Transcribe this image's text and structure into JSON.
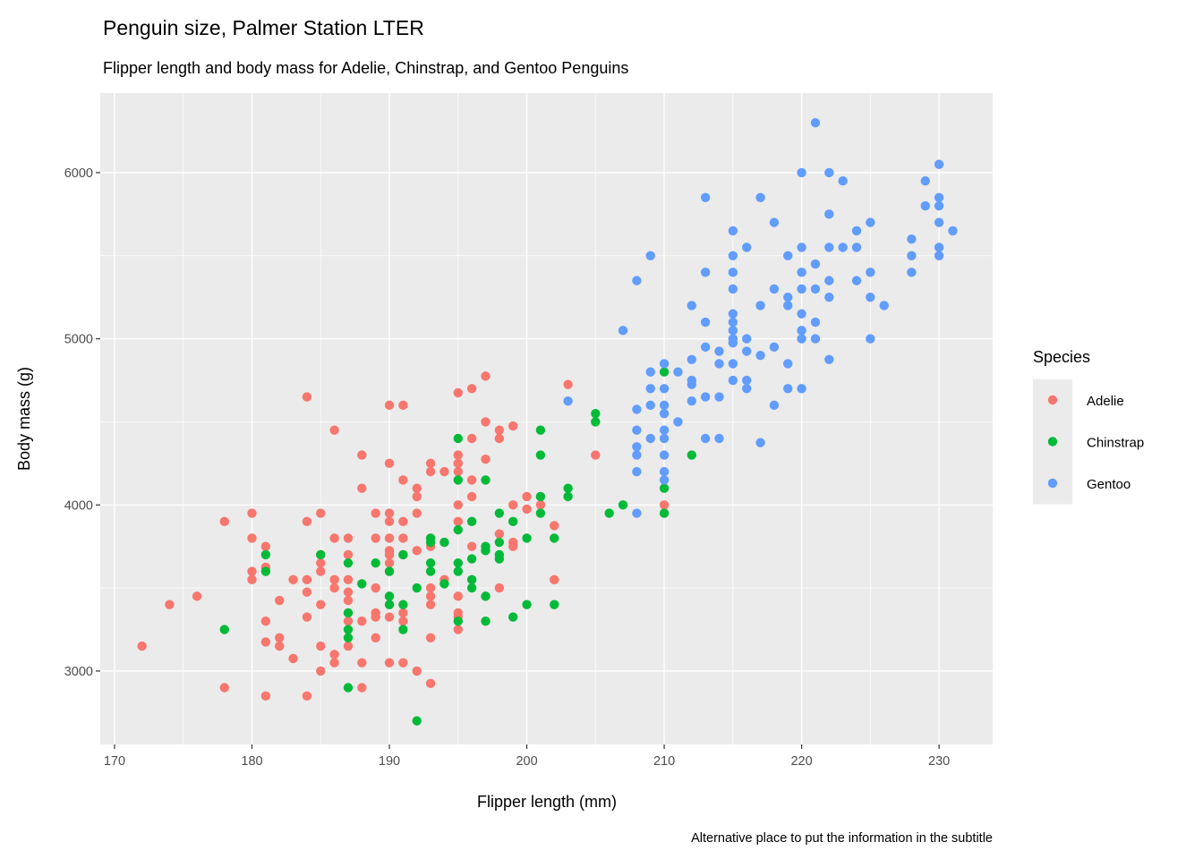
{
  "chart_data": {
    "type": "scatter",
    "title": "Penguin size, Palmer Station LTER",
    "subtitle": "Flipper length and body mass for Adelie, Chinstrap, and Gentoo Penguins",
    "caption": "Alternative place to put the information in the subtitle",
    "xlabel": "Flipper length (mm)",
    "ylabel": "Body mass (g)",
    "xlim": [
      168.96,
      233.9
    ],
    "ylim": [
      2558,
      6479
    ],
    "xticks": [
      170,
      180,
      190,
      200,
      210,
      220,
      230
    ],
    "yticks": [
      3000,
      4000,
      5000,
      6000
    ],
    "grid": true,
    "legend": {
      "title": "Species",
      "placement": "right"
    },
    "series": [
      {
        "name": "Adelie",
        "color": "#F8766D",
        "points": [
          [
            172,
            3150
          ],
          [
            174,
            3400
          ],
          [
            176,
            3450
          ],
          [
            178,
            3900
          ],
          [
            178,
            2900
          ],
          [
            180,
            3950
          ],
          [
            180,
            3800
          ],
          [
            180,
            3600
          ],
          [
            180,
            3550
          ],
          [
            181,
            3750
          ],
          [
            181,
            3625
          ],
          [
            181,
            3300
          ],
          [
            181,
            3175
          ],
          [
            181,
            2850
          ],
          [
            182,
            3425
          ],
          [
            182,
            3200
          ],
          [
            182,
            3150
          ],
          [
            183,
            3550
          ],
          [
            183,
            3075
          ],
          [
            184,
            4650
          ],
          [
            184,
            3900
          ],
          [
            184,
            3550
          ],
          [
            184,
            3475
          ],
          [
            184,
            3325
          ],
          [
            184,
            2850
          ],
          [
            185,
            3950
          ],
          [
            185,
            3700
          ],
          [
            185,
            3650
          ],
          [
            185,
            3600
          ],
          [
            185,
            3400
          ],
          [
            185,
            3150
          ],
          [
            185,
            3000
          ],
          [
            186,
            4450
          ],
          [
            186,
            3800
          ],
          [
            186,
            3550
          ],
          [
            186,
            3500
          ],
          [
            186,
            3100
          ],
          [
            186,
            3050
          ],
          [
            187,
            3800
          ],
          [
            187,
            3700
          ],
          [
            187,
            3550
          ],
          [
            187,
            3475
          ],
          [
            187,
            3425
          ],
          [
            187,
            3300
          ],
          [
            187,
            3150
          ],
          [
            188,
            4300
          ],
          [
            188,
            4100
          ],
          [
            188,
            3300
          ],
          [
            188,
            3050
          ],
          [
            188,
            2900
          ],
          [
            189,
            3950
          ],
          [
            189,
            3800
          ],
          [
            189,
            3500
          ],
          [
            189,
            3350
          ],
          [
            189,
            3325
          ],
          [
            189,
            3200
          ],
          [
            190,
            4600
          ],
          [
            190,
            4250
          ],
          [
            190,
            3950
          ],
          [
            190,
            3900
          ],
          [
            190,
            3800
          ],
          [
            190,
            3725
          ],
          [
            190,
            3700
          ],
          [
            190,
            3650
          ],
          [
            190,
            3600
          ],
          [
            190,
            3450
          ],
          [
            190,
            3400
          ],
          [
            190,
            3325
          ],
          [
            190,
            3050
          ],
          [
            191,
            4600
          ],
          [
            191,
            4150
          ],
          [
            191,
            3900
          ],
          [
            191,
            3800
          ],
          [
            191,
            3700
          ],
          [
            191,
            3350
          ],
          [
            191,
            3300
          ],
          [
            191,
            3050
          ],
          [
            192,
            4100
          ],
          [
            192,
            4050
          ],
          [
            192,
            3950
          ],
          [
            192,
            3725
          ],
          [
            192,
            3000
          ],
          [
            193,
            4250
          ],
          [
            193,
            4200
          ],
          [
            193,
            3800
          ],
          [
            193,
            3750
          ],
          [
            193,
            3500
          ],
          [
            193,
            3450
          ],
          [
            193,
            3400
          ],
          [
            193,
            3200
          ],
          [
            193,
            2925
          ],
          [
            194,
            4200
          ],
          [
            194,
            3775
          ],
          [
            194,
            3550
          ],
          [
            195,
            4675
          ],
          [
            195,
            4300
          ],
          [
            195,
            4250
          ],
          [
            195,
            4200
          ],
          [
            195,
            4000
          ],
          [
            195,
            3900
          ],
          [
            195,
            3450
          ],
          [
            195,
            3350
          ],
          [
            195,
            3325
          ],
          [
            195,
            3250
          ],
          [
            196,
            4700
          ],
          [
            196,
            4400
          ],
          [
            196,
            4150
          ],
          [
            196,
            4050
          ],
          [
            196,
            3750
          ],
          [
            197,
            4775
          ],
          [
            197,
            4500
          ],
          [
            197,
            4275
          ],
          [
            197,
            3450
          ],
          [
            198,
            4450
          ],
          [
            198,
            4400
          ],
          [
            198,
            3825
          ],
          [
            198,
            3500
          ],
          [
            199,
            4475
          ],
          [
            199,
            4000
          ],
          [
            199,
            3775
          ],
          [
            199,
            3750
          ],
          [
            200,
            4050
          ],
          [
            200,
            3975
          ],
          [
            201,
            4050
          ],
          [
            201,
            4000
          ],
          [
            202,
            3875
          ],
          [
            202,
            3550
          ],
          [
            203,
            4725
          ],
          [
            205,
            4300
          ],
          [
            210,
            4000
          ]
        ]
      },
      {
        "name": "Chinstrap",
        "color": "#00BA38",
        "points": [
          [
            178,
            3250
          ],
          [
            181,
            3700
          ],
          [
            181,
            3600
          ],
          [
            185,
            3700
          ],
          [
            187,
            3650
          ],
          [
            187,
            3350
          ],
          [
            187,
            3250
          ],
          [
            187,
            3200
          ],
          [
            187,
            2900
          ],
          [
            188,
            3525
          ],
          [
            189,
            3650
          ],
          [
            190,
            3600
          ],
          [
            190,
            3450
          ],
          [
            190,
            3400
          ],
          [
            191,
            3700
          ],
          [
            191,
            3400
          ],
          [
            191,
            3250
          ],
          [
            192,
            3500
          ],
          [
            192,
            2700
          ],
          [
            193,
            3800
          ],
          [
            193,
            3775
          ],
          [
            193,
            3650
          ],
          [
            193,
            3600
          ],
          [
            194,
            3775
          ],
          [
            194,
            3525
          ],
          [
            195,
            4400
          ],
          [
            195,
            4150
          ],
          [
            195,
            3850
          ],
          [
            195,
            3650
          ],
          [
            195,
            3600
          ],
          [
            195,
            3300
          ],
          [
            196,
            3900
          ],
          [
            196,
            3675
          ],
          [
            196,
            3550
          ],
          [
            196,
            3500
          ],
          [
            197,
            4150
          ],
          [
            197,
            3750
          ],
          [
            197,
            3725
          ],
          [
            197,
            3450
          ],
          [
            197,
            3300
          ],
          [
            198,
            3950
          ],
          [
            198,
            3775
          ],
          [
            198,
            3700
          ],
          [
            198,
            3675
          ],
          [
            199,
            3900
          ],
          [
            199,
            3325
          ],
          [
            200,
            3800
          ],
          [
            200,
            3400
          ],
          [
            201,
            4450
          ],
          [
            201,
            4300
          ],
          [
            201,
            4050
          ],
          [
            201,
            3950
          ],
          [
            202,
            3800
          ],
          [
            202,
            3400
          ],
          [
            203,
            4100
          ],
          [
            203,
            4050
          ],
          [
            205,
            4550
          ],
          [
            205,
            4500
          ],
          [
            206,
            3950
          ],
          [
            207,
            4000
          ],
          [
            210,
            4800
          ],
          [
            210,
            4100
          ],
          [
            210,
            3950
          ],
          [
            212,
            4300
          ]
        ]
      },
      {
        "name": "Gentoo",
        "color": "#619CFF",
        "points": [
          [
            203,
            4625
          ],
          [
            207,
            5050
          ],
          [
            208,
            5350
          ],
          [
            208,
            4575
          ],
          [
            208,
            4450
          ],
          [
            208,
            4300
          ],
          [
            208,
            4350
          ],
          [
            208,
            4200
          ],
          [
            208,
            3950
          ],
          [
            209,
            5500
          ],
          [
            209,
            4800
          ],
          [
            209,
            4700
          ],
          [
            209,
            4600
          ],
          [
            209,
            4400
          ],
          [
            210,
            4850
          ],
          [
            210,
            4700
          ],
          [
            210,
            4600
          ],
          [
            210,
            4550
          ],
          [
            210,
            4450
          ],
          [
            210,
            4400
          ],
          [
            210,
            4300
          ],
          [
            210,
            4200
          ],
          [
            210,
            4150
          ],
          [
            211,
            4800
          ],
          [
            211,
            4500
          ],
          [
            212,
            5200
          ],
          [
            212,
            4875
          ],
          [
            212,
            4750
          ],
          [
            212,
            4725
          ],
          [
            212,
            4625
          ],
          [
            213,
            5850
          ],
          [
            213,
            5400
          ],
          [
            213,
            5100
          ],
          [
            213,
            4950
          ],
          [
            213,
            4650
          ],
          [
            213,
            4400
          ],
          [
            214,
            4925
          ],
          [
            214,
            4850
          ],
          [
            214,
            4650
          ],
          [
            214,
            4400
          ],
          [
            215,
            5650
          ],
          [
            215,
            5500
          ],
          [
            215,
            5400
          ],
          [
            215,
            5300
          ],
          [
            215,
            5150
          ],
          [
            215,
            5100
          ],
          [
            215,
            5050
          ],
          [
            215,
            5000
          ],
          [
            215,
            4975
          ],
          [
            215,
            4850
          ],
          [
            215,
            4750
          ],
          [
            216,
            5550
          ],
          [
            216,
            5000
          ],
          [
            216,
            4925
          ],
          [
            216,
            4750
          ],
          [
            216,
            4700
          ],
          [
            217,
            5850
          ],
          [
            217,
            5200
          ],
          [
            217,
            4900
          ],
          [
            217,
            4375
          ],
          [
            218,
            5700
          ],
          [
            218,
            5300
          ],
          [
            218,
            4950
          ],
          [
            218,
            4600
          ],
          [
            219,
            5500
          ],
          [
            219,
            5250
          ],
          [
            219,
            5200
          ],
          [
            219,
            4850
          ],
          [
            219,
            4700
          ],
          [
            220,
            6000
          ],
          [
            220,
            5550
          ],
          [
            220,
            5400
          ],
          [
            220,
            5300
          ],
          [
            220,
            5150
          ],
          [
            220,
            5050
          ],
          [
            220,
            5000
          ],
          [
            220,
            4700
          ],
          [
            221,
            6300
          ],
          [
            221,
            5450
          ],
          [
            221,
            5300
          ],
          [
            221,
            5100
          ],
          [
            221,
            5000
          ],
          [
            222,
            6000
          ],
          [
            222,
            5750
          ],
          [
            222,
            5550
          ],
          [
            222,
            5350
          ],
          [
            222,
            5250
          ],
          [
            222,
            4875
          ],
          [
            223,
            5950
          ],
          [
            223,
            5550
          ],
          [
            224,
            5650
          ],
          [
            224,
            5550
          ],
          [
            224,
            5350
          ],
          [
            225,
            5700
          ],
          [
            225,
            5400
          ],
          [
            225,
            5250
          ],
          [
            225,
            5000
          ],
          [
            226,
            5200
          ],
          [
            228,
            5600
          ],
          [
            228,
            5500
          ],
          [
            228,
            5400
          ],
          [
            229,
            5950
          ],
          [
            229,
            5800
          ],
          [
            230,
            6050
          ],
          [
            230,
            5850
          ],
          [
            230,
            5800
          ],
          [
            230,
            5700
          ],
          [
            230,
            5550
          ],
          [
            230,
            5500
          ],
          [
            231,
            5650
          ]
        ]
      }
    ]
  }
}
